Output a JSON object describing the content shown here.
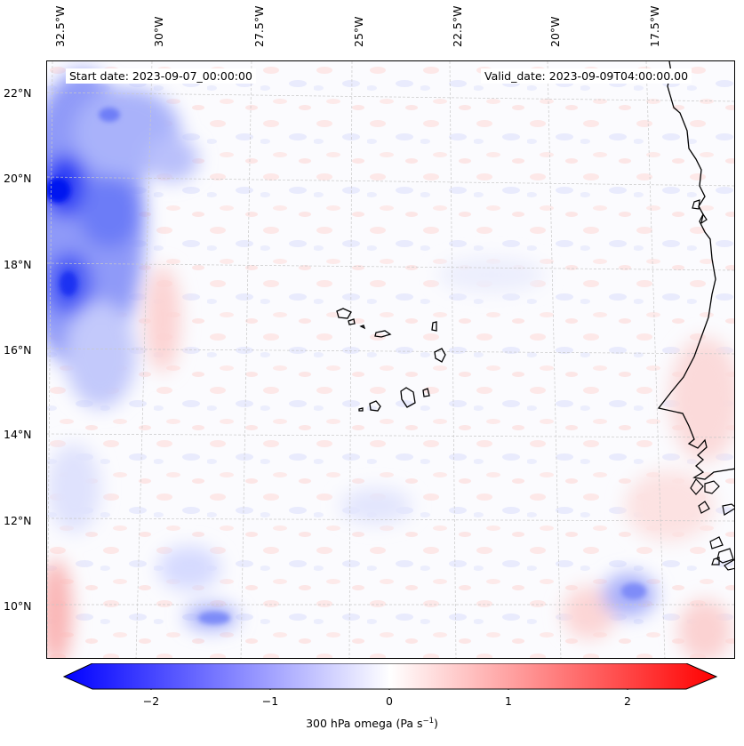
{
  "map": {
    "start_date": "Start date: 2023-09-07_00:00:00",
    "valid_date": "Valid_date: 2023-09-09T04:00:00.00",
    "lon_labels": [
      "32.5°W",
      "30°W",
      "27.5°W",
      "25°W",
      "22.5°W",
      "20°W",
      "17.5°W"
    ],
    "lat_labels": [
      "22°N",
      "20°N",
      "18°N",
      "16°N",
      "14°N",
      "12°N",
      "10°N"
    ],
    "field": "300 hPa omega",
    "region": "Cabo Verde islands and West African coast",
    "colors": {
      "negative": "#0000ff",
      "zero": "#ffffff",
      "positive": "#ff0000",
      "coast": "#000000",
      "grid": "#c8c8c8"
    }
  },
  "colorbar": {
    "title_text": "300 hPa omega (Pa s",
    "title_sup": "−1",
    "title_end": ")",
    "ticks": [
      "−2",
      "−1",
      "0",
      "1",
      "2"
    ],
    "range": [
      -2.6,
      2.6
    ]
  }
}
